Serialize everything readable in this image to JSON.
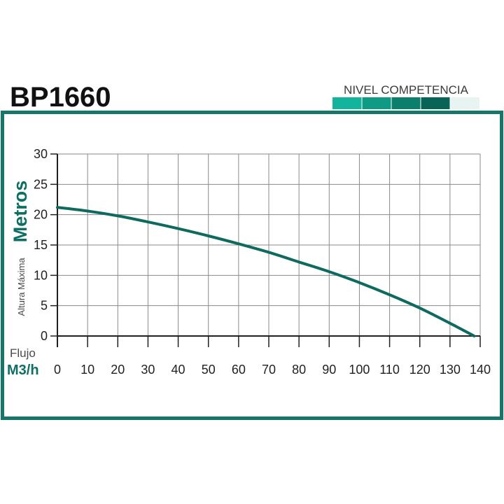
{
  "model": "BP1660",
  "level": {
    "label": "NIVEL COMPETENCIA",
    "segments": [
      "#12b49c",
      "#0f9a85",
      "#0b7f6c",
      "#076456",
      "#e8f4f1"
    ]
  },
  "colors": {
    "frame": "#17766a",
    "curve": "#0e6a5e",
    "grid": "#8a8a8a",
    "axis": "#231f20"
  },
  "chart_data": {
    "type": "line",
    "x": [
      0,
      10,
      20,
      30,
      40,
      50,
      60,
      70,
      80,
      90,
      100,
      110,
      120,
      130,
      138
    ],
    "series": [
      {
        "values": [
          21.2,
          20.6,
          19.8,
          18.8,
          17.7,
          16.5,
          15.2,
          13.8,
          12.2,
          10.6,
          8.8,
          6.8,
          4.6,
          2.1,
          0
        ]
      }
    ],
    "xlim": [
      0,
      140
    ],
    "ylim": [
      0,
      30
    ],
    "xticks": [
      0,
      10,
      20,
      30,
      40,
      50,
      60,
      70,
      80,
      90,
      100,
      110,
      120,
      130,
      140
    ],
    "yticks": [
      0,
      5,
      10,
      15,
      20,
      25,
      30
    ],
    "xlabel_small": "Flujo",
    "xlabel_big": "M3/h",
    "ylabel_small": "Altura Máxima",
    "ylabel_big": "Metros",
    "grid": true
  }
}
